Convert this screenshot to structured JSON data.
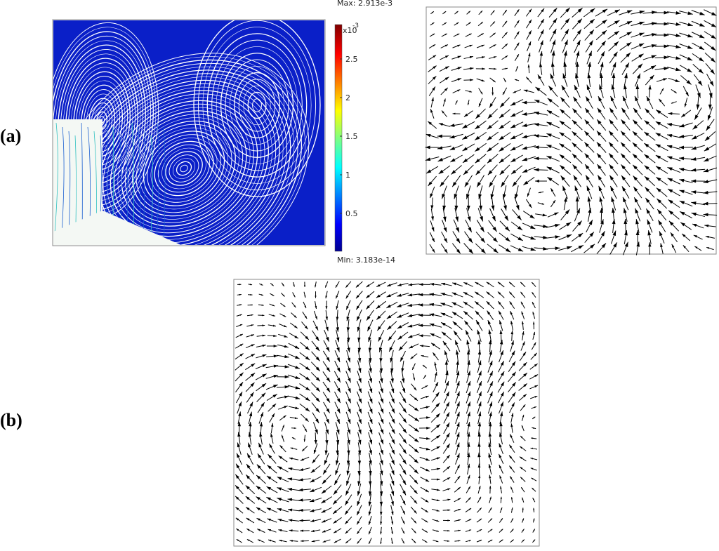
{
  "panel_a": {
    "label": "(a)",
    "colorbar": {
      "max_label": "Max: 2.913e-3",
      "min_label": "Min: 3.183e-14",
      "exponent_base": "x10",
      "exponent": "-3",
      "ticks": [
        "0.5",
        "1",
        "1.5",
        "2",
        "2.5"
      ]
    }
  },
  "panel_b": {
    "label": "(b)"
  }
}
